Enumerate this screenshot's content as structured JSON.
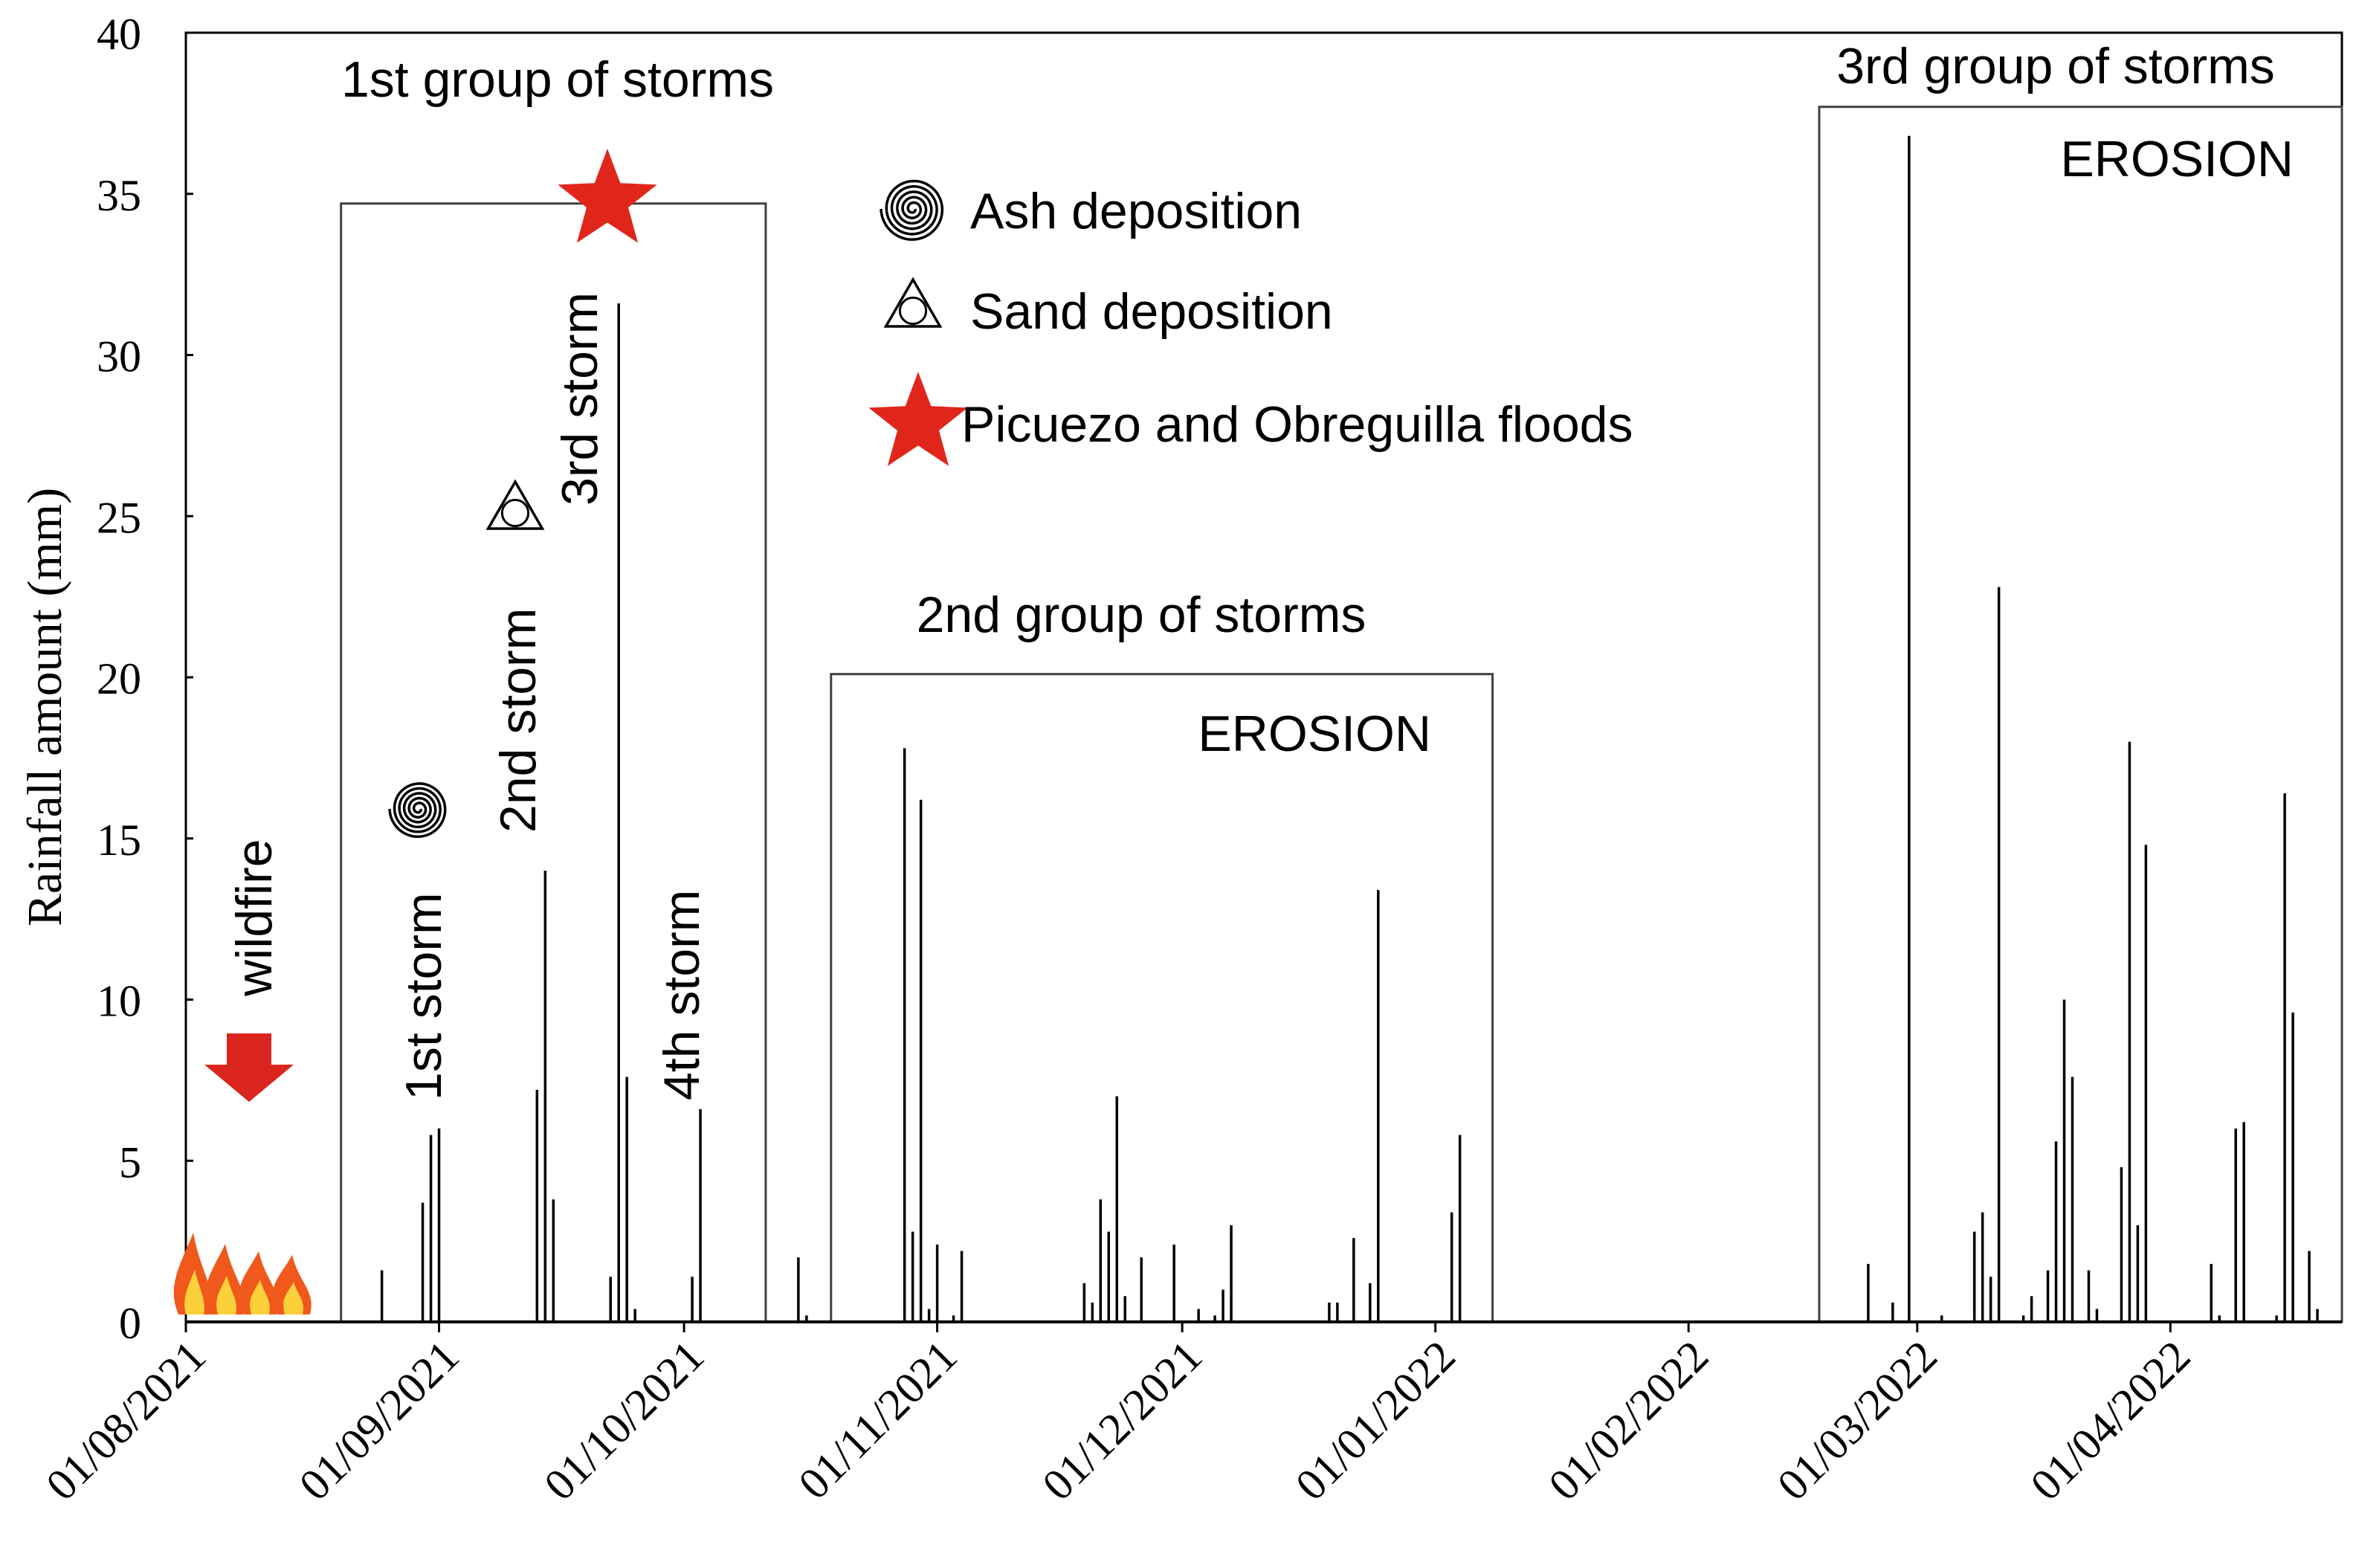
{
  "chart_data": {
    "type": "bar",
    "title": "",
    "xlabel": "",
    "ylabel": "Rainfall amount (mm)",
    "ylim": [
      0,
      40
    ],
    "yticks": [
      0,
      5,
      10,
      15,
      20,
      25,
      30,
      35,
      40
    ],
    "x_range_days": [
      0,
      264
    ],
    "x_ticks": [
      {
        "label": "01/08/2021",
        "day": 0
      },
      {
        "label": "01/09/2021",
        "day": 31
      },
      {
        "label": "01/10/2021",
        "day": 61
      },
      {
        "label": "01/11/2021",
        "day": 92
      },
      {
        "label": "01/12/2021",
        "day": 122
      },
      {
        "label": "01/01/2022",
        "day": 153
      },
      {
        "label": "01/02/2022",
        "day": 184
      },
      {
        "label": "01/03/2022",
        "day": 212
      },
      {
        "label": "01/04/2022",
        "day": 243
      }
    ],
    "series": [
      {
        "name": "Daily rainfall (mm)",
        "points": [
          {
            "day": 24,
            "value": 1.6
          },
          {
            "day": 29,
            "value": 3.7
          },
          {
            "day": 30,
            "value": 5.8
          },
          {
            "day": 31,
            "value": 6.0
          },
          {
            "day": 43,
            "value": 7.2
          },
          {
            "day": 44,
            "value": 14.0
          },
          {
            "day": 45,
            "value": 3.8
          },
          {
            "day": 52,
            "value": 1.4
          },
          {
            "day": 53,
            "value": 31.6
          },
          {
            "day": 54,
            "value": 7.6
          },
          {
            "day": 55,
            "value": 0.4
          },
          {
            "day": 62,
            "value": 1.4
          },
          {
            "day": 63,
            "value": 6.6
          },
          {
            "day": 75,
            "value": 2.0
          },
          {
            "day": 76,
            "value": 0.2
          },
          {
            "day": 88,
            "value": 17.8
          },
          {
            "day": 89,
            "value": 2.8
          },
          {
            "day": 90,
            "value": 16.2
          },
          {
            "day": 91,
            "value": 0.4
          },
          {
            "day": 92,
            "value": 2.4
          },
          {
            "day": 94,
            "value": 0.2
          },
          {
            "day": 95,
            "value": 2.2
          },
          {
            "day": 110,
            "value": 1.2
          },
          {
            "day": 111,
            "value": 0.6
          },
          {
            "day": 112,
            "value": 3.8
          },
          {
            "day": 113,
            "value": 2.8
          },
          {
            "day": 114,
            "value": 7.0
          },
          {
            "day": 115,
            "value": 0.8
          },
          {
            "day": 117,
            "value": 2.0
          },
          {
            "day": 121,
            "value": 2.4
          },
          {
            "day": 124,
            "value": 0.4
          },
          {
            "day": 126,
            "value": 0.2
          },
          {
            "day": 127,
            "value": 1.0
          },
          {
            "day": 128,
            "value": 3.0
          },
          {
            "day": 140,
            "value": 0.6
          },
          {
            "day": 141,
            "value": 0.6
          },
          {
            "day": 143,
            "value": 2.6
          },
          {
            "day": 145,
            "value": 1.2
          },
          {
            "day": 146,
            "value": 13.4
          },
          {
            "day": 155,
            "value": 3.4
          },
          {
            "day": 156,
            "value": 5.8
          },
          {
            "day": 206,
            "value": 1.8
          },
          {
            "day": 209,
            "value": 0.6
          },
          {
            "day": 211,
            "value": 36.8
          },
          {
            "day": 215,
            "value": 0.2
          },
          {
            "day": 219,
            "value": 2.8
          },
          {
            "day": 220,
            "value": 3.4
          },
          {
            "day": 221,
            "value": 1.4
          },
          {
            "day": 222,
            "value": 22.8
          },
          {
            "day": 225,
            "value": 0.2
          },
          {
            "day": 226,
            "value": 0.8
          },
          {
            "day": 228,
            "value": 1.6
          },
          {
            "day": 229,
            "value": 5.6
          },
          {
            "day": 230,
            "value": 10.0
          },
          {
            "day": 231,
            "value": 7.6
          },
          {
            "day": 233,
            "value": 1.6
          },
          {
            "day": 234,
            "value": 0.4
          },
          {
            "day": 237,
            "value": 4.8
          },
          {
            "day": 238,
            "value": 18.0
          },
          {
            "day": 239,
            "value": 3.0
          },
          {
            "day": 240,
            "value": 14.8
          },
          {
            "day": 248,
            "value": 1.8
          },
          {
            "day": 249,
            "value": 0.2
          },
          {
            "day": 251,
            "value": 6.0
          },
          {
            "day": 252,
            "value": 6.2
          },
          {
            "day": 256,
            "value": 0.2
          },
          {
            "day": 257,
            "value": 16.4
          },
          {
            "day": 258,
            "value": 9.6
          },
          {
            "day": 260,
            "value": 2.2
          },
          {
            "day": 261,
            "value": 0.4
          }
        ]
      }
    ],
    "groups": [
      {
        "label": "1st group of storms",
        "start_day": 19,
        "end_day": 71,
        "top_value": 34.7,
        "caption": ""
      },
      {
        "label": "2nd group of storms",
        "start_day": 79,
        "end_day": 160,
        "top_value": 20.1,
        "caption": "EROSION"
      },
      {
        "label": "3rd group of storms",
        "start_day": 200,
        "end_day": 264,
        "top_value": 37.7,
        "caption": "EROSION"
      }
    ],
    "storm_labels": [
      {
        "label": "1st storm",
        "day": 29
      },
      {
        "label": "2nd storm",
        "day": 41
      },
      {
        "label": "3rd storm",
        "day": 49
      },
      {
        "label": "4th storm",
        "day": 61
      }
    ],
    "event_labels": {
      "wildfire": "wildfire"
    },
    "legend": [
      {
        "label": "Ash deposition",
        "icon": "spiral-icon"
      },
      {
        "label": "Sand deposition",
        "icon": "nonagram-icon"
      },
      {
        "label": "Picuezo and Obreguilla floods",
        "icon": "red-star-icon"
      }
    ],
    "colors": {
      "bars": "#000000",
      "boxes": "#404040",
      "flood_star": "#e0261b",
      "arrow": "#d9251d",
      "flame_outer": "#f0581c",
      "flame_inner": "#fbd03b"
    }
  }
}
